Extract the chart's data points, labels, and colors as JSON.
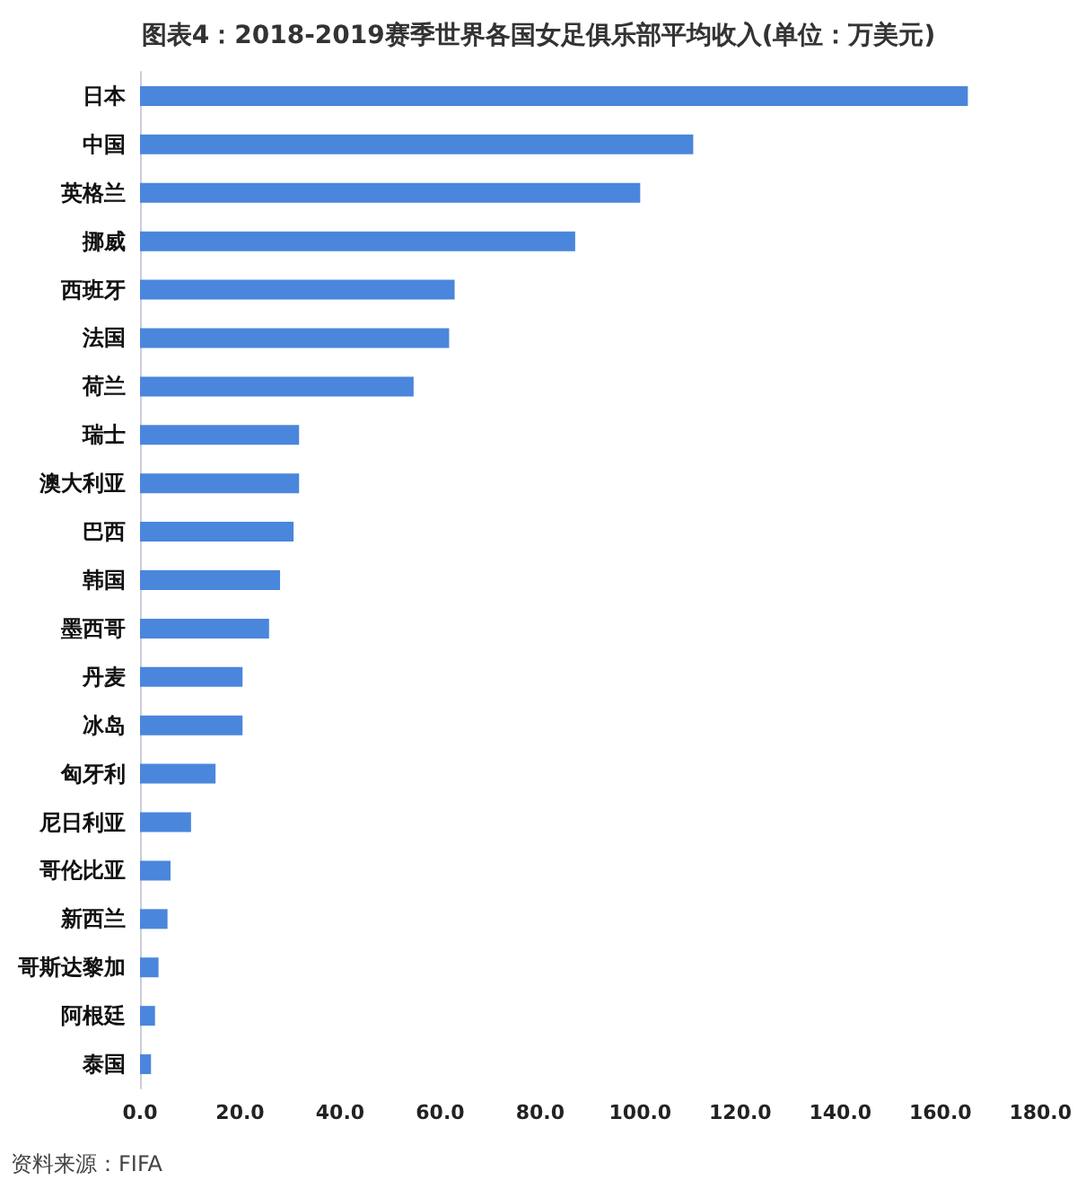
{
  "chart_data": {
    "type": "bar",
    "orientation": "horizontal",
    "title": "图表4：2018-2019赛季世界各国女足俱乐部平均收入(单位：万美元)",
    "categories": [
      "日本",
      "中国",
      "英格兰",
      "挪威",
      "西班牙",
      "法国",
      "荷兰",
      "瑞士",
      "澳大利亚",
      "巴西",
      "韩国",
      "墨西哥",
      "丹麦",
      "冰岛",
      "匈牙利",
      "尼日利亚",
      "哥伦比亚",
      "新西兰",
      "哥斯达黎加",
      "阿根廷",
      "泰国"
    ],
    "values": [
      165.5,
      110.6,
      100.0,
      87.0,
      62.9,
      61.8,
      54.7,
      31.8,
      31.8,
      30.7,
      28.0,
      25.8,
      20.5,
      20.5,
      15.1,
      10.2,
      6.1,
      5.5,
      3.7,
      3.0,
      2.2
    ],
    "color": "#4a86dc",
    "xlim": [
      0,
      180
    ],
    "xticks": [
      {
        "value": 0,
        "label": "0.0"
      },
      {
        "value": 20,
        "label": "20.0"
      },
      {
        "value": 40,
        "label": "40.0"
      },
      {
        "value": 60,
        "label": "60.0"
      },
      {
        "value": 80,
        "label": "80.0"
      },
      {
        "value": 100,
        "label": "100.0"
      },
      {
        "value": 120,
        "label": "120.0"
      },
      {
        "value": 140,
        "label": "140.0"
      },
      {
        "value": 160,
        "label": "160.0"
      },
      {
        "value": 180,
        "label": "180.0"
      }
    ],
    "grid": false,
    "annotations": [
      "资料来源：FIFA"
    ]
  }
}
